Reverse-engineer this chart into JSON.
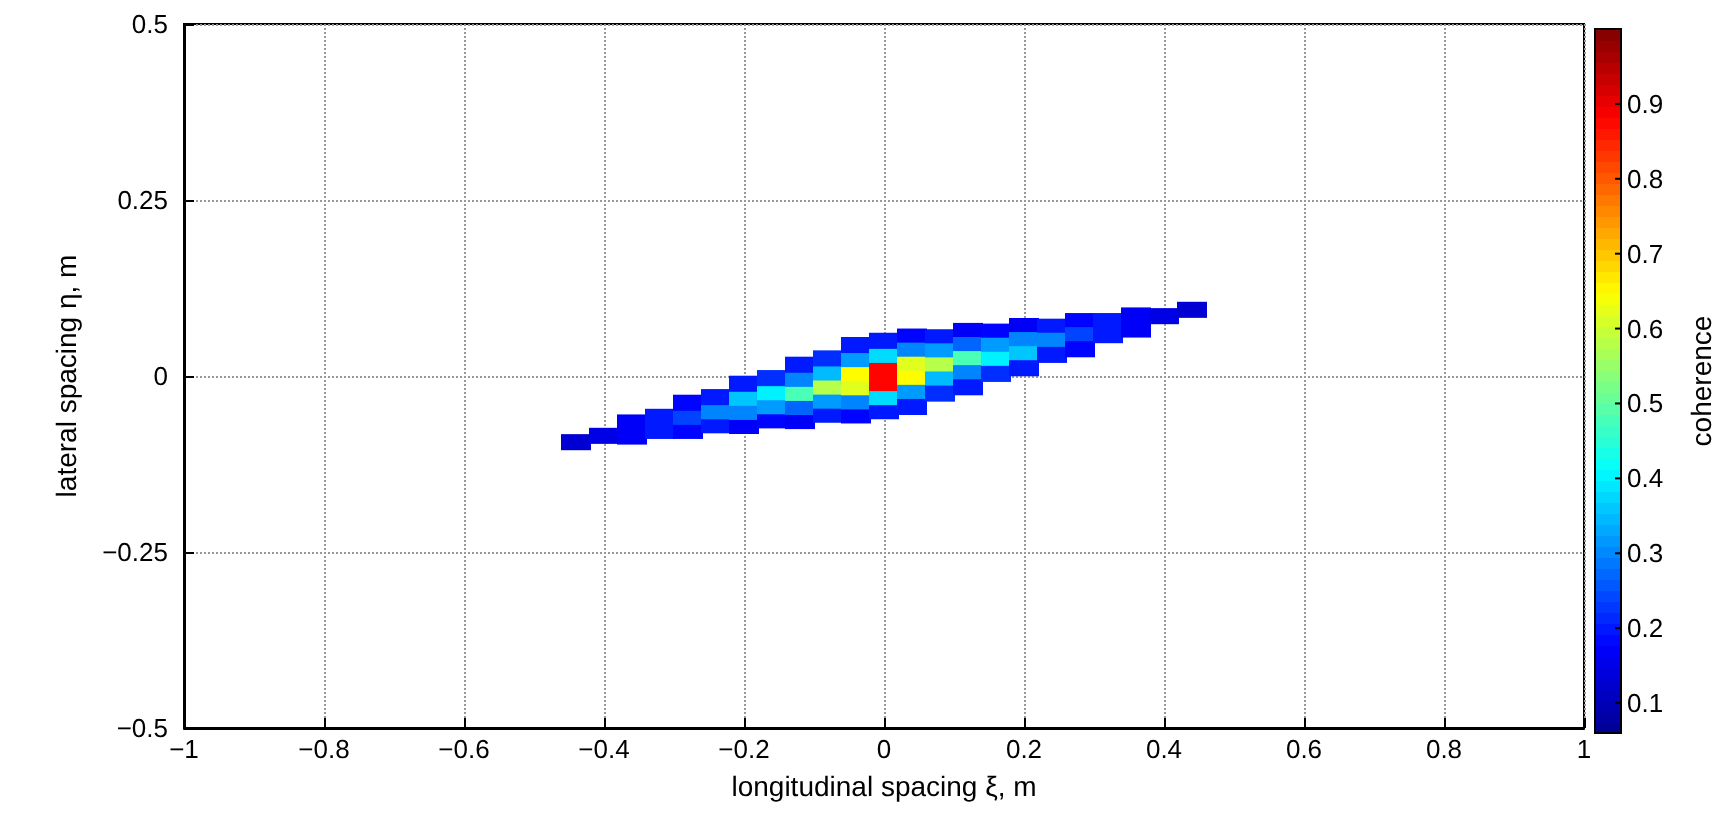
{
  "chart_data": {
    "type": "scatter",
    "xlabel": "longitudinal spacing ξ, m",
    "ylabel": "lateral spacing η, m",
    "clabel": "coherence",
    "xlim": [
      -1,
      1
    ],
    "xticks": [
      -1,
      -0.8,
      -0.6,
      -0.4,
      -0.2,
      0,
      0.2,
      0.4,
      0.6,
      0.8,
      1
    ],
    "ylim": [
      -0.5,
      0.5
    ],
    "yticks": [
      -0.5,
      -0.25,
      0,
      0.25,
      0.5
    ],
    "clim": [
      0.06,
      1
    ],
    "cticks": [
      0.1,
      0.2,
      0.3,
      0.4,
      0.5,
      0.6,
      0.7,
      0.8,
      0.9
    ],
    "grid": true,
    "marker": "square",
    "x": [
      -0.44,
      -0.4,
      -0.36,
      -0.36,
      -0.32,
      -0.32,
      -0.28,
      -0.28,
      -0.28,
      -0.24,
      -0.24,
      -0.24,
      -0.2,
      -0.2,
      -0.2,
      -0.2,
      -0.16,
      -0.16,
      -0.16,
      -0.16,
      -0.12,
      -0.12,
      -0.12,
      -0.12,
      -0.12,
      -0.08,
      -0.08,
      -0.08,
      -0.08,
      -0.08,
      -0.04,
      -0.04,
      -0.04,
      -0.04,
      -0.04,
      -0.04,
      0,
      0,
      0,
      0,
      0,
      0,
      0.04,
      0.04,
      0.04,
      0.04,
      0.04,
      0.04,
      0.08,
      0.08,
      0.08,
      0.08,
      0.08,
      0.12,
      0.12,
      0.12,
      0.12,
      0.12,
      0.16,
      0.16,
      0.16,
      0.16,
      0.2,
      0.2,
      0.2,
      0.2,
      0.24,
      0.24,
      0.24,
      0.28,
      0.28,
      0.28,
      0.32,
      0.32,
      0.36,
      0.36,
      0.4,
      0.44
    ],
    "values": [
      -0.094,
      -0.085,
      -0.086,
      -0.066,
      -0.078,
      -0.058,
      -0.078,
      -0.058,
      -0.038,
      -0.07,
      -0.05,
      -0.03,
      -0.071,
      -0.051,
      -0.031,
      -0.011,
      -0.063,
      -0.043,
      -0.023,
      -0.003,
      -0.064,
      -0.044,
      -0.024,
      -0.004,
      0.016,
      -0.055,
      -0.035,
      -0.015,
      0.005,
      0.025,
      -0.056,
      -0.036,
      -0.016,
      0.004,
      0.024,
      0.044,
      -0.05,
      -0.03,
      -0.01,
      0.01,
      0.03,
      0.05,
      0.056,
      0.036,
      0.016,
      -0.004,
      -0.024,
      -0.044,
      0.055,
      0.035,
      0.015,
      -0.005,
      -0.025,
      0.064,
      0.044,
      0.024,
      0.004,
      -0.016,
      0.063,
      0.043,
      0.023,
      0.003,
      0.071,
      0.051,
      0.031,
      0.011,
      0.07,
      0.05,
      0.03,
      0.078,
      0.058,
      0.038,
      0.078,
      0.058,
      0.086,
      0.066,
      0.085,
      0.094
    ],
    "cvalues": [
      0.13,
      0.15,
      0.17,
      0.17,
      0.2,
      0.2,
      0.18,
      0.24,
      0.18,
      0.2,
      0.3,
      0.2,
      0.17,
      0.3,
      0.36,
      0.2,
      0.18,
      0.32,
      0.4,
      0.22,
      0.17,
      0.27,
      0.48,
      0.3,
      0.2,
      0.2,
      0.32,
      0.58,
      0.35,
      0.22,
      0.18,
      0.3,
      0.62,
      0.65,
      0.32,
      0.2,
      0.2,
      0.38,
      0.88,
      0.88,
      0.38,
      0.2,
      0.18,
      0.3,
      0.62,
      0.65,
      0.32,
      0.2,
      0.2,
      0.32,
      0.58,
      0.35,
      0.22,
      0.17,
      0.27,
      0.48,
      0.3,
      0.2,
      0.18,
      0.32,
      0.4,
      0.22,
      0.17,
      0.3,
      0.36,
      0.2,
      0.2,
      0.3,
      0.2,
      0.18,
      0.24,
      0.18,
      0.2,
      0.2,
      0.17,
      0.17,
      0.15,
      0.13
    ]
  }
}
